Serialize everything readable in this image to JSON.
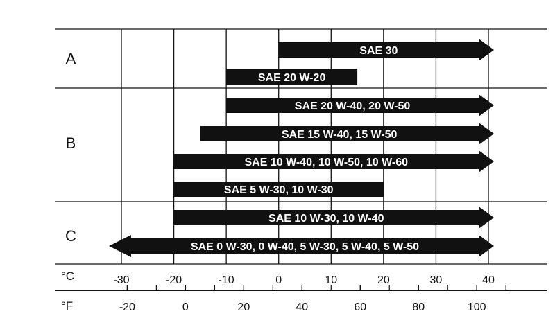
{
  "chart_data": {
    "type": "bar",
    "orientation": "horizontal range",
    "title": "",
    "groups": [
      {
        "label": "A",
        "bars": [
          {
            "label": "SAE 30",
            "range_c": [
              0,
              40
            ],
            "open_low": false,
            "open_high": true
          },
          {
            "label": "SAE 20 W-20",
            "range_c": [
              -10,
              15
            ],
            "open_low": false,
            "open_high": false
          }
        ]
      },
      {
        "label": "B",
        "bars": [
          {
            "label": "SAE 20 W-40, 20 W-50",
            "range_c": [
              -10,
              40
            ],
            "open_low": false,
            "open_high": true
          },
          {
            "label": "SAE 15 W-40, 15 W-50",
            "range_c": [
              -15,
              40
            ],
            "open_low": false,
            "open_high": true
          },
          {
            "label": "SAE 10 W-40, 10 W-50, 10 W-60",
            "range_c": [
              -20,
              40
            ],
            "open_low": false,
            "open_high": true
          },
          {
            "label": "SAE 5 W-30, 10 W-30",
            "range_c": [
              -20,
              20
            ],
            "open_low": false,
            "open_high": false
          }
        ]
      },
      {
        "label": "C",
        "bars": [
          {
            "label": "SAE 10 W-30, 10 W-40",
            "range_c": [
              -20,
              40
            ],
            "open_low": false,
            "open_high": true
          },
          {
            "label": "SAE 0 W-30, 0 W-40, 5 W-30, 5 W-40, 5 W-50",
            "range_c": [
              -30,
              40
            ],
            "open_low": true,
            "open_high": true
          }
        ]
      }
    ],
    "axis_c": {
      "unit_label": "°C",
      "ticks": [
        "-30",
        "-20",
        "-10",
        "0",
        "10",
        "20",
        "30",
        "40"
      ],
      "range": [
        -30,
        40
      ]
    },
    "axis_f": {
      "unit_label": "°F",
      "ticks": [
        "-20",
        "0",
        "20",
        "40",
        "60",
        "80",
        "100"
      ],
      "minor_step": 10,
      "range": [
        -20,
        100
      ]
    },
    "grid": true,
    "colors": {
      "bar": "#111111",
      "bar_text": "#ffffff",
      "lines": "#111111",
      "background": "#ffffff"
    }
  }
}
